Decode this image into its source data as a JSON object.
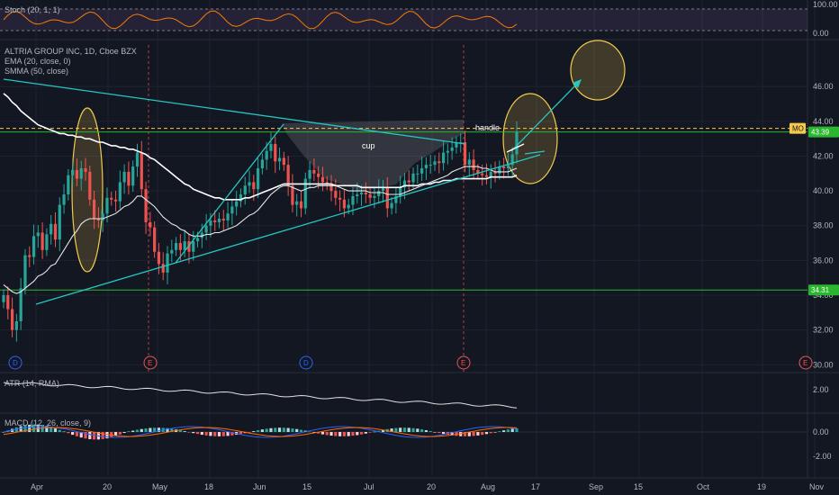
{
  "panes": {
    "stoch_label": "Stoch (20, 1, 1)",
    "title": "ALTRIA GROUP INC, 1D, Cboe BZX",
    "ema_label": "EMA (20, close, 0)",
    "smma_label": "SMMA (50, close)",
    "atr_label": "ATR (14, RMA)",
    "macd_label": "MACD (12, 26, close, 9)"
  },
  "chart_data": {
    "type": "candlestick",
    "symbol": "ALTRIA GROUP INC",
    "interval": "1D",
    "source": "Cboe BZX",
    "x_labels": [
      "Apr",
      "20",
      "May",
      "18",
      "Jun",
      "15",
      "Jul",
      "20",
      "Aug",
      "17",
      "Sep",
      "15",
      "Oct",
      "19",
      "Nov"
    ],
    "price_axis": {
      "ylim": [
        29.6,
        48.6
      ],
      "ticks": [
        "46.00",
        "44.00",
        "42.00",
        "40.00",
        "38.00",
        "36.00",
        "34.00",
        "32.00",
        "30.00"
      ]
    },
    "stoch_axis": {
      "ticks": [
        "100.00",
        "0.00"
      ]
    },
    "atr_axis": {
      "ticks": [
        "2.00"
      ]
    },
    "macd_axis": {
      "ticks": [
        "0.00",
        "-2.00"
      ]
    },
    "closes": [
      34.0,
      33.2,
      32.0,
      32.5,
      34.4,
      36.3,
      36.2,
      37.4,
      37.6,
      36.6,
      37.5,
      38.1,
      37.2,
      39.2,
      39.8,
      40.9,
      41.2,
      40.7,
      41.3,
      41.1,
      39.5,
      38.4,
      38.3,
      38.7,
      39.6,
      39.5,
      39.4,
      40.5,
      41.1,
      40.3,
      41.4,
      42.2,
      40.1,
      38.2,
      37.9,
      36.5,
      35.8,
      35.3,
      36.4,
      36.6,
      37.0,
      36.6,
      37.1,
      36.5,
      37.1,
      37.3,
      37.6,
      38.0,
      38.3,
      38.2,
      38.4,
      38.3,
      38.7,
      39.1,
      39.4,
      39.8,
      40.3,
      40.5,
      40.1,
      41.3,
      41.8,
      42.3,
      42.7,
      41.7,
      41.9,
      41.5,
      40.3,
      39.2,
      39.4,
      39.0,
      40.7,
      41.2,
      41.0,
      40.8,
      40.5,
      40.4,
      40.0,
      39.6,
      39.5,
      39.0,
      39.2,
      39.7,
      39.8,
      39.9,
      39.8,
      39.6,
      39.7,
      40.0,
      40.2,
      39.0,
      39.3,
      39.7,
      40.2,
      40.6,
      40.5,
      41.0,
      41.0,
      41.3,
      41.5,
      41.5,
      41.7,
      41.6,
      42.2,
      42.3,
      42.5,
      42.8,
      42.8,
      41.5,
      41.8,
      41.2,
      41.0,
      40.9,
      40.8,
      41.1,
      41.0,
      41.4,
      41.3,
      41.5,
      42.1,
      43.4
    ],
    "ema_20": [
      34.6,
      34.4,
      34.2,
      34.1,
      34.2,
      34.4,
      34.6,
      34.8,
      35.1,
      35.2,
      35.4,
      35.7,
      35.8,
      36.2,
      36.6,
      37.0,
      37.4,
      37.7,
      38.1,
      38.3,
      38.4,
      38.4,
      38.4,
      38.4,
      38.5,
      38.6,
      38.7,
      38.9,
      39.1,
      39.2,
      39.4,
      39.7,
      39.7,
      39.5,
      39.3,
      39.1,
      38.8,
      38.5,
      38.3,
      38.1,
      38.0,
      37.8,
      37.7,
      37.5,
      37.4,
      37.4,
      37.4,
      37.5,
      37.5,
      37.6,
      37.6,
      37.7,
      37.8,
      37.9,
      38.0,
      38.2,
      38.4,
      38.6,
      38.7,
      38.9,
      39.2,
      39.5,
      39.8,
      40.0,
      40.2,
      40.3,
      40.3,
      40.2,
      40.1,
      40.0,
      40.1,
      40.2,
      40.2,
      40.3,
      40.3,
      40.3,
      40.3,
      40.3,
      40.2,
      40.1,
      40.0,
      40.0,
      40.0,
      40.0,
      40.0,
      39.9,
      39.9,
      39.9,
      39.9,
      39.8,
      39.8,
      39.8,
      39.8,
      39.9,
      40.0,
      40.1,
      40.2,
      40.3,
      40.4,
      40.5,
      40.6,
      40.7,
      40.8,
      40.9,
      41.1,
      41.2,
      41.3,
      41.4,
      41.4,
      41.4,
      41.4,
      41.3,
      41.3,
      41.2,
      41.1,
      41.1,
      41.1,
      41.1,
      41.2,
      41.3
    ],
    "smma_50": [
      45.6,
      45.4,
      45.1,
      44.9,
      44.6,
      44.4,
      44.2,
      44.0,
      43.8,
      43.7,
      43.6,
      43.5,
      43.4,
      43.3,
      43.3,
      43.2,
      43.2,
      43.1,
      43.1,
      43.0,
      43.0,
      42.9,
      42.8,
      42.8,
      42.7,
      42.6,
      42.6,
      42.5,
      42.5,
      42.4,
      42.4,
      42.3,
      42.2,
      42.1,
      41.9,
      41.8,
      41.6,
      41.4,
      41.2,
      41.0,
      40.8,
      40.6,
      40.4,
      40.3,
      40.1,
      40.0,
      39.9,
      39.8,
      39.7,
      39.6,
      39.6,
      39.5,
      39.5,
      39.5,
      39.5,
      39.5,
      39.6,
      39.6,
      39.7,
      39.8,
      39.9,
      40.0,
      40.1,
      40.2,
      40.3,
      40.4,
      40.4,
      40.4,
      40.4,
      40.4,
      40.4,
      40.4,
      40.4,
      40.4,
      40.4,
      40.4,
      40.4,
      40.3,
      40.3,
      40.3,
      40.3,
      40.3,
      40.3,
      40.2,
      40.2,
      40.2,
      40.2,
      40.2,
      40.2,
      40.2,
      40.2,
      40.2,
      40.2,
      40.3,
      40.3,
      40.3,
      40.3,
      40.4,
      40.4,
      40.4,
      40.5,
      40.5,
      40.6,
      40.6,
      40.6,
      40.7,
      40.7,
      40.7,
      40.7,
      40.7,
      40.7,
      40.7,
      40.7,
      40.8,
      40.8,
      40.8,
      40.8,
      40.8,
      40.8,
      40.9
    ],
    "horizontal_levels": [
      {
        "price": 43.6,
        "label": "MO",
        "color": "#f7c948",
        "style": "dashed"
      },
      {
        "price": 43.39,
        "label": "43.39",
        "color": "#2ab72f"
      },
      {
        "price": 34.3,
        "label": "34.31",
        "color": "#2ab72f"
      }
    ],
    "annotations": [
      "cup",
      "handle"
    ],
    "events": [
      {
        "label": "D",
        "kind": "dividend",
        "color": "#2962ff"
      },
      {
        "label": "E",
        "kind": "earnings",
        "color": "#ef5350"
      },
      {
        "label": "D",
        "kind": "dividend",
        "color": "#2962ff"
      },
      {
        "label": "E",
        "kind": "earnings",
        "color": "#ef5350"
      },
      {
        "label": "E",
        "kind": "earnings",
        "color": "#ef5350"
      }
    ],
    "colors": {
      "up": "#26a69a",
      "down": "#ef5350",
      "ema": "#e8e8e8",
      "smma": "#ffffff",
      "trend": "#25c7c2",
      "highlight": "#f2c94c"
    }
  }
}
